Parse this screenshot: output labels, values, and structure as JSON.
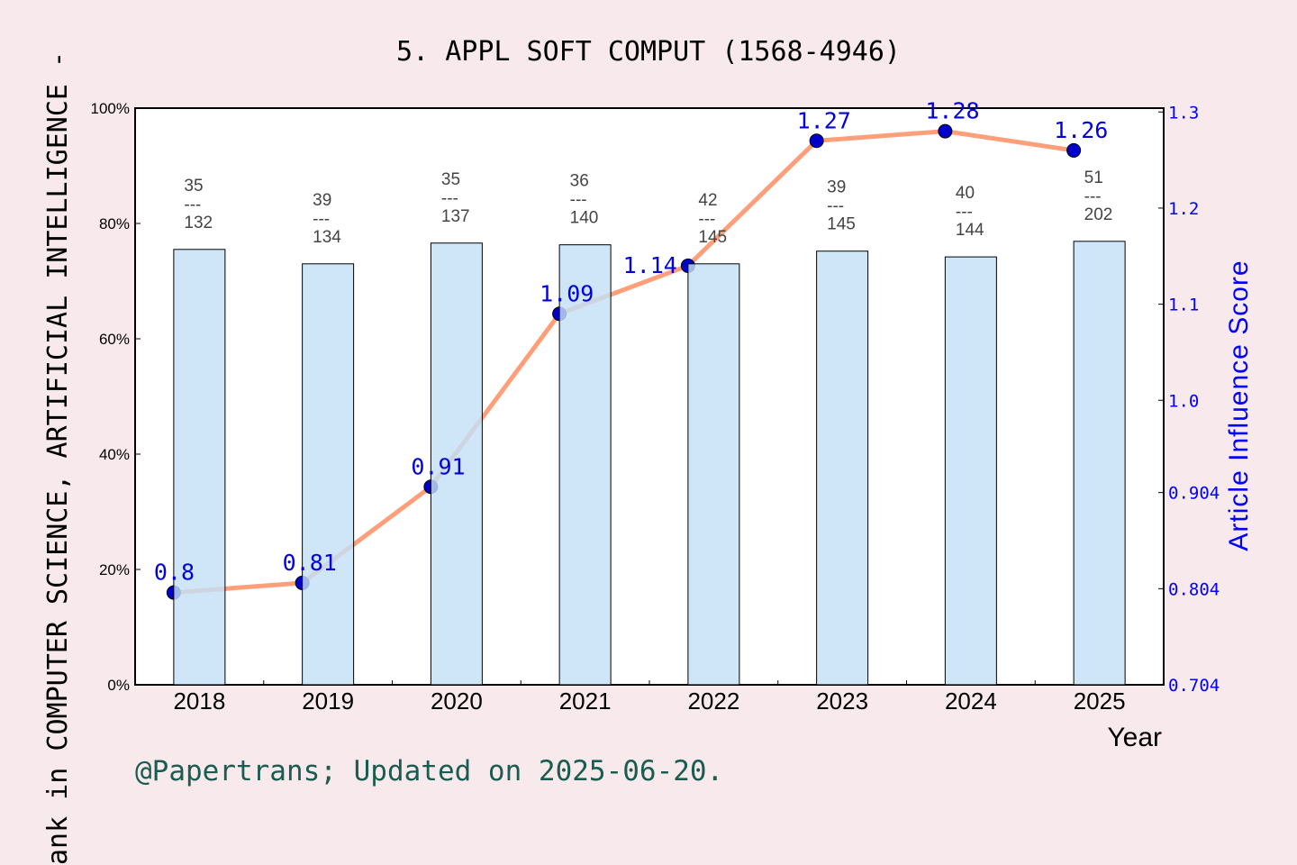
{
  "chart_data": {
    "type": "bar+line",
    "title": "5. APPL SOFT COMPUT (1568-4946)",
    "xlabel": "Year",
    "ylabel_left": "ank in COMPUTER SCIENCE, ARTIFICIAL INTELLIGENCE -",
    "ylabel_right": "Article Influence Score",
    "categories": [
      "2018",
      "2019",
      "2020",
      "2021",
      "2022",
      "2023",
      "2024",
      "2025"
    ],
    "left_axis": {
      "ylim": [
        0,
        100
      ],
      "ticks": [
        "0%",
        "20%",
        "40%",
        "60%",
        "80%",
        "100%"
      ],
      "tick_values": [
        0,
        20,
        40,
        60,
        80,
        100
      ]
    },
    "right_axis": {
      "ylim": [
        0.704,
        1.304
      ],
      "ticks": [
        "0.704",
        "0.804",
        "0.904",
        "1.0",
        "1.1",
        "1.2",
        "1.3"
      ],
      "tick_values": [
        0.704,
        0.804,
        0.904,
        1.0,
        1.1,
        1.2,
        1.3
      ]
    },
    "bars": {
      "values": [
        75.5,
        73.0,
        76.6,
        76.3,
        73.0,
        75.2,
        74.2,
        76.9
      ],
      "rank": [
        "35",
        "39",
        "35",
        "36",
        "42",
        "39",
        "40",
        "51"
      ],
      "total": [
        "132",
        "134",
        "137",
        "140",
        "145",
        "145",
        "144",
        "202"
      ],
      "separator": "---",
      "color": "#c5e0f7"
    },
    "line": {
      "values": [
        0.8,
        0.81,
        0.91,
        1.09,
        1.14,
        1.27,
        1.28,
        1.26
      ],
      "labels": [
        "0.8",
        "0.81",
        "0.91",
        "1.09",
        "1.14",
        "1.27",
        "1.28",
        "1.26"
      ],
      "line_color": "#ff9f7a",
      "marker_color": "#0000cc",
      "label_color": "#0000dd"
    },
    "grid": false
  },
  "footer": "@Papertrans; Updated on 2025-06-20.",
  "colors": {
    "background": "#f8e9ec",
    "footer": "#1a5c4f",
    "right_axis": "#0000ff"
  }
}
